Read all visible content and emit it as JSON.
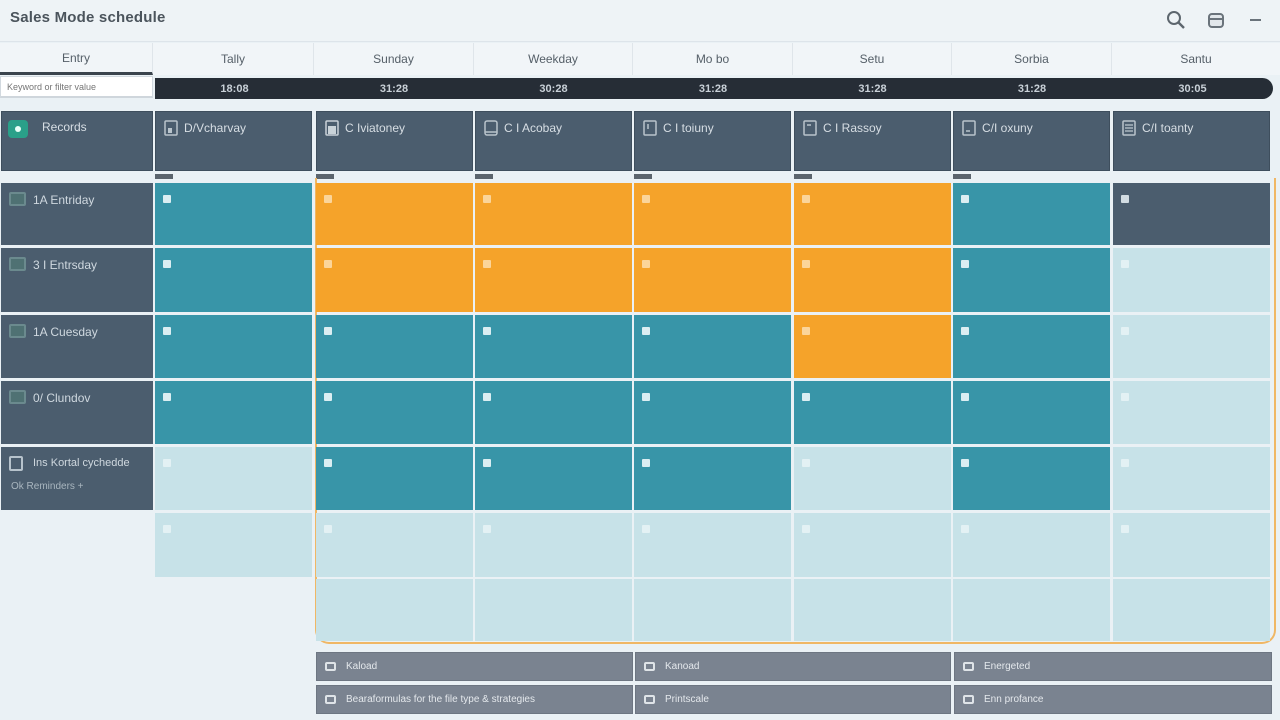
{
  "window": {
    "title": "Sales Mode schedule",
    "icons": [
      "search-icon",
      "window-restore-icon",
      "minimize-icon"
    ]
  },
  "columns": [
    {
      "label": "Entry",
      "value": ""
    },
    {
      "label": "Tally",
      "value": "18:08"
    },
    {
      "label": "Sunday",
      "value": "31:28"
    },
    {
      "label": "Weekday",
      "value": "30:28"
    },
    {
      "label": "Mo bo",
      "value": "31:28"
    },
    {
      "label": "Setu",
      "value": "31:28"
    },
    {
      "label": "Sorbia",
      "value": "31:28"
    },
    {
      "label": "Santu",
      "value": "30:05"
    }
  ],
  "filter": {
    "placeholder": "Keyword or filter value"
  },
  "header_cards": [
    {
      "label": "Records",
      "icon": "status-badge-icon"
    },
    {
      "label": "D/Vcharvay",
      "icon": "document-icon"
    },
    {
      "label": "C Iviatoney",
      "icon": "document-icon"
    },
    {
      "label": "C I Acobay",
      "icon": "tablet-icon"
    },
    {
      "label": "C I toiuny",
      "icon": "document-icon"
    },
    {
      "label": "C I Rassoy",
      "icon": "document-icon"
    },
    {
      "label": "C/I oxuny",
      "icon": "document-icon"
    },
    {
      "label": "C/I toanty",
      "icon": "list-icon"
    }
  ],
  "rows": [
    {
      "label": "1A Entriday",
      "sub": "",
      "cells": [
        "teal",
        "orange",
        "orange",
        "orange",
        "orange",
        "teal",
        "dark"
      ]
    },
    {
      "label": "3 I Entrsday",
      "sub": "",
      "cells": [
        "teal",
        "orange",
        "orange",
        "orange",
        "orange",
        "teal",
        "light"
      ]
    },
    {
      "label": "1A Cuesday",
      "sub": "",
      "cells": [
        "teal",
        "teal",
        "teal",
        "teal",
        "orange",
        "teal",
        "light"
      ]
    },
    {
      "label": "0/ Clundov",
      "sub": "",
      "cells": [
        "teal",
        "teal",
        "teal",
        "teal",
        "teal",
        "teal",
        "light"
      ]
    },
    {
      "label": "Ins Kortal cychedde",
      "sub": "Ok Reminders +",
      "cells": [
        "light",
        "teal",
        "teal",
        "teal",
        "light",
        "teal",
        "light"
      ]
    },
    {
      "label": "",
      "sub": "",
      "cells": [
        "light",
        "light",
        "light",
        "light",
        "light",
        "light",
        "light"
      ]
    },
    {
      "label": "",
      "sub": "",
      "cells": [
        "none",
        "light",
        "light",
        "light",
        "light",
        "light",
        "light"
      ]
    }
  ],
  "footer": [
    {
      "label": "Kaload",
      "icon": "reload-icon"
    },
    {
      "label": "Kanoad",
      "icon": "tag-icon"
    },
    {
      "label": "Energeted",
      "icon": "bolt-icon"
    },
    {
      "label": "Bearaformulas for the file type & strategies",
      "icon": "folder-icon"
    },
    {
      "label": "Printscale",
      "icon": "print-icon"
    },
    {
      "label": "Enn profance",
      "icon": "grid-icon"
    }
  ],
  "colors": {
    "teal": "#3895a8",
    "orange": "#f5a32a",
    "light": "#c7e2e8",
    "dark": "#4b5d6e",
    "frame": "#f0b765"
  }
}
